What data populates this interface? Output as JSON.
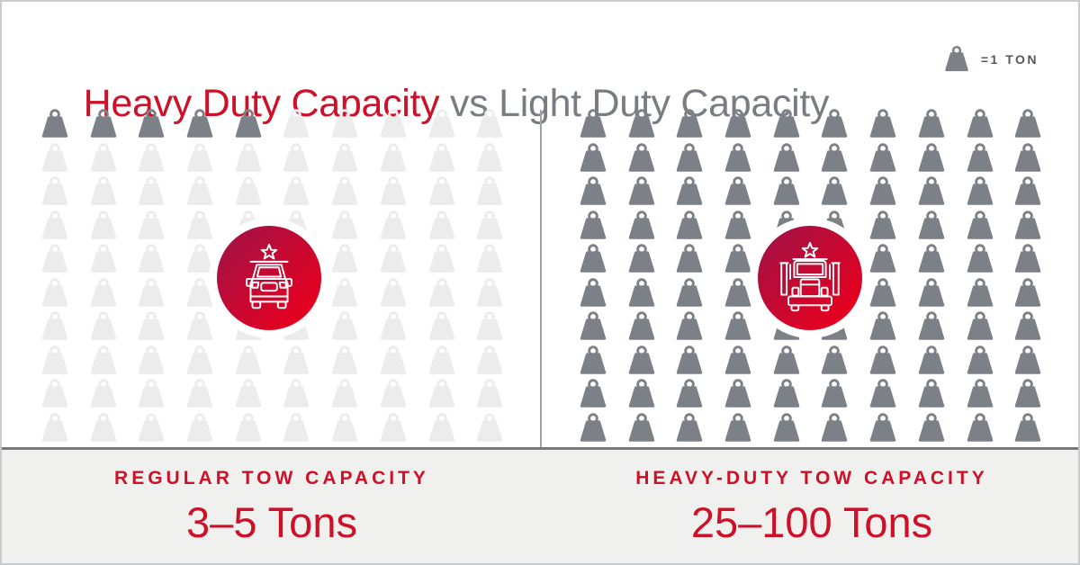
{
  "header": {
    "title_primary": "Heavy Duty Capacity",
    "title_secondary": " vs Light Duty Capacity",
    "legend_label": "=1 TON"
  },
  "panels": {
    "left": {
      "label": "REGULAR TOW CAPACITY",
      "value": "3–5 Tons"
    },
    "right": {
      "label": "HEAVY-DUTY TOW CAPACITY",
      "value": "25–100 Tons"
    }
  },
  "colors": {
    "red": "#cc1128",
    "title_gray": "#797d81",
    "weight_dark": "#7c8187",
    "weight_light": "#ececec",
    "panel_bg": "#f0f0ef",
    "rule_dark": "#77797c",
    "divider": "#a0a2a4",
    "frame_border": "#c9cacb",
    "legend_text": "#55585b",
    "badge_grad_start": "#a31145",
    "badge_grad_end": "#e6001f"
  },
  "chart_data": {
    "type": "pictogram",
    "title": "Heavy Duty Capacity vs Light Duty Capacity",
    "icon": "weight",
    "icon_unit_label": "=1 TON",
    "tons_per_icon": 1,
    "grid": {
      "rows": 10,
      "cols": 10
    },
    "series": [
      {
        "name": "Regular Tow Capacity",
        "value_label": "3–5 Tons",
        "min_tons": 3,
        "max_tons": 5,
        "icons_total": 100,
        "icons_highlighted": 5,
        "center_icon": "car"
      },
      {
        "name": "Heavy-Duty Tow Capacity",
        "value_label": "25–100 Tons",
        "min_tons": 25,
        "max_tons": 100,
        "icons_total": 100,
        "icons_highlighted": 100,
        "center_icon": "semi-truck"
      }
    ]
  }
}
